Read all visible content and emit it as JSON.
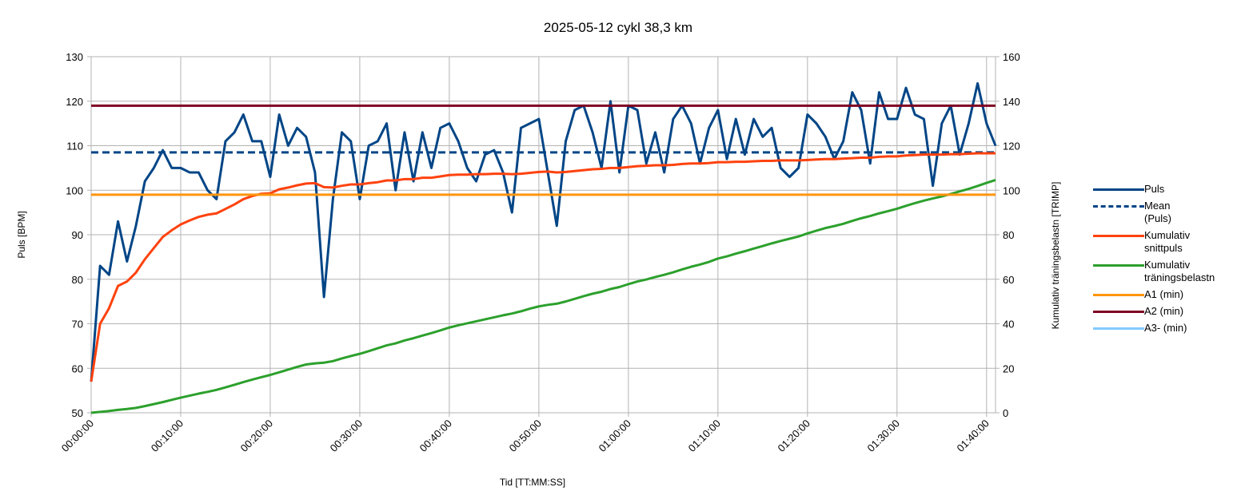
{
  "chart_data": {
    "type": "line",
    "title": "2025-05-12 cykl 38,3 km",
    "xlabel": "Tid [TT:MM:SS]",
    "ylabel": "Puls [BPM]",
    "y2label": "Kumulativ träningsbelastn [TRIMP]",
    "x": [
      0,
      1,
      2,
      3,
      4,
      5,
      6,
      7,
      8,
      9,
      10,
      11,
      12,
      13,
      14,
      15,
      16,
      17,
      18,
      19,
      20,
      21,
      22,
      23,
      24,
      25,
      26,
      27,
      28,
      29,
      30,
      31,
      32,
      33,
      34,
      35,
      36,
      37,
      38,
      39,
      40,
      41,
      42,
      43,
      44,
      45,
      46,
      47,
      48,
      49,
      50,
      51,
      52,
      53,
      54,
      55,
      56,
      57,
      58,
      59,
      60,
      61,
      62,
      63,
      64,
      65,
      66,
      67,
      68,
      69,
      70,
      71,
      72,
      73,
      74,
      75,
      76,
      77,
      78,
      79,
      80,
      81,
      82,
      83,
      84,
      85,
      86,
      87,
      88,
      89,
      90,
      91,
      92,
      93,
      94,
      95,
      96,
      97,
      98,
      99,
      100,
      101
    ],
    "xlim": [
      0,
      101
    ],
    "xticks": [
      {
        "value": 0,
        "label": "00:00:00"
      },
      {
        "value": 10,
        "label": "00:10:00"
      },
      {
        "value": 20,
        "label": "00:20:00"
      },
      {
        "value": 30,
        "label": "00:30:00"
      },
      {
        "value": 40,
        "label": "00:40:00"
      },
      {
        "value": 50,
        "label": "00:50:00"
      },
      {
        "value": 60,
        "label": "01:00:00"
      },
      {
        "value": 70,
        "label": "01:10:00"
      },
      {
        "value": 80,
        "label": "01:20:00"
      },
      {
        "value": 90,
        "label": "01:30:00"
      },
      {
        "value": 100,
        "label": "01:40:00"
      }
    ],
    "ylim": [
      50,
      130
    ],
    "yticks": [
      50,
      60,
      70,
      80,
      90,
      100,
      110,
      120,
      130
    ],
    "y2lim": [
      0,
      160
    ],
    "y2ticks": [
      0,
      20,
      40,
      60,
      80,
      100,
      120,
      140,
      160
    ],
    "grid": true,
    "legend": "right",
    "series": [
      {
        "name": "Puls",
        "color": "#004586",
        "values": [
          57,
          83,
          81,
          93,
          84,
          92,
          102,
          105,
          109,
          105,
          105,
          104,
          104,
          100,
          98,
          111,
          113,
          117,
          111,
          111,
          103,
          117,
          110,
          114,
          112,
          104,
          76,
          98,
          113,
          111,
          98,
          110,
          111,
          115,
          100,
          113,
          102,
          113,
          105,
          114,
          115,
          111,
          105,
          102,
          108,
          109,
          104,
          95,
          114,
          115,
          116,
          104,
          92,
          111,
          118,
          119,
          113,
          105,
          120,
          104,
          119,
          118,
          106,
          113,
          104,
          116,
          119,
          115,
          106,
          114,
          118,
          107,
          116,
          108,
          116,
          112,
          114,
          105,
          103,
          105,
          117,
          115,
          112,
          107,
          111,
          122,
          118,
          106,
          122,
          116,
          116,
          123,
          117,
          116,
          101,
          115,
          119,
          108,
          115,
          124,
          115,
          110
        ]
      },
      {
        "name": "Mean (Puls)",
        "color": "#004586",
        "dash": true,
        "value": 108.5
      },
      {
        "name": "Kumulativ snittpuls",
        "color": "#ff420e",
        "values": [
          57,
          70,
          73.5,
          78.5,
          79.5,
          81.5,
          84.5,
          87,
          89.5,
          91,
          92.3,
          93.2,
          94,
          94.5,
          94.8,
          95.8,
          96.8,
          98,
          98.7,
          99.2,
          99.3,
          100.2,
          100.6,
          101.1,
          101.5,
          101.6,
          100.7,
          100.6,
          101,
          101.3,
          101.3,
          101.6,
          101.8,
          102.2,
          102.2,
          102.5,
          102.5,
          102.8,
          102.8,
          103.1,
          103.4,
          103.5,
          103.5,
          103.6,
          103.6,
          103.7,
          103.7,
          103.6,
          103.7,
          103.9,
          104.1,
          104.2,
          104,
          104.1,
          104.3,
          104.5,
          104.7,
          104.8,
          105,
          105,
          105.2,
          105.4,
          105.5,
          105.6,
          105.6,
          105.7,
          105.9,
          106,
          106,
          106.1,
          106.3,
          106.3,
          106.4,
          106.4,
          106.5,
          106.6,
          106.6,
          106.7,
          106.7,
          106.7,
          106.8,
          106.9,
          107,
          107,
          107.1,
          107.2,
          107.3,
          107.3,
          107.5,
          107.6,
          107.6,
          107.8,
          107.9,
          108,
          108,
          108,
          108.1,
          108.1,
          108.2,
          108.3,
          108.3,
          108.3
        ]
      },
      {
        "name": "Kumulativ träningsbelastn",
        "color": "#2ca02c",
        "axis": "y2",
        "values": [
          0,
          0.4,
          0.8,
          1.3,
          1.7,
          2.2,
          3,
          3.9,
          4.8,
          5.8,
          6.8,
          7.7,
          8.6,
          9.4,
          10.3,
          11.4,
          12.6,
          13.8,
          14.9,
          16,
          17,
          18.2,
          19.4,
          20.6,
          21.7,
          22.2,
          22.5,
          23.2,
          24.4,
          25.5,
          26.5,
          27.7,
          29,
          30.3,
          31.2,
          32.5,
          33.5,
          34.7,
          35.8,
          37,
          38.3,
          39.3,
          40.2,
          41.1,
          42,
          42.9,
          43.8,
          44.6,
          45.6,
          46.8,
          47.8,
          48.5,
          49,
          50,
          51.2,
          52.4,
          53.5,
          54.4,
          55.6,
          56.5,
          57.8,
          59,
          59.9,
          61,
          62,
          63.1,
          64.4,
          65.6,
          66.6,
          67.8,
          69.3,
          70.3,
          71.5,
          72.6,
          73.8,
          74.9,
          76.1,
          77.2,
          78.2,
          79.2,
          80.6,
          81.8,
          83,
          83.9,
          84.9,
          86.2,
          87.4,
          88.4,
          89.6,
          90.6,
          91.7,
          93,
          94.2,
          95.3,
          96.3,
          97.2,
          98.3,
          99.5,
          100.6,
          101.9,
          103.3,
          104.6
        ]
      },
      {
        "name": "A1 (min)",
        "color": "#ff950e",
        "value": 99
      },
      {
        "name": "A2 (min)",
        "color": "#7e0021",
        "value": 119
      },
      {
        "name": "A3- (min)",
        "color": "#83caff",
        "value": null
      }
    ]
  }
}
